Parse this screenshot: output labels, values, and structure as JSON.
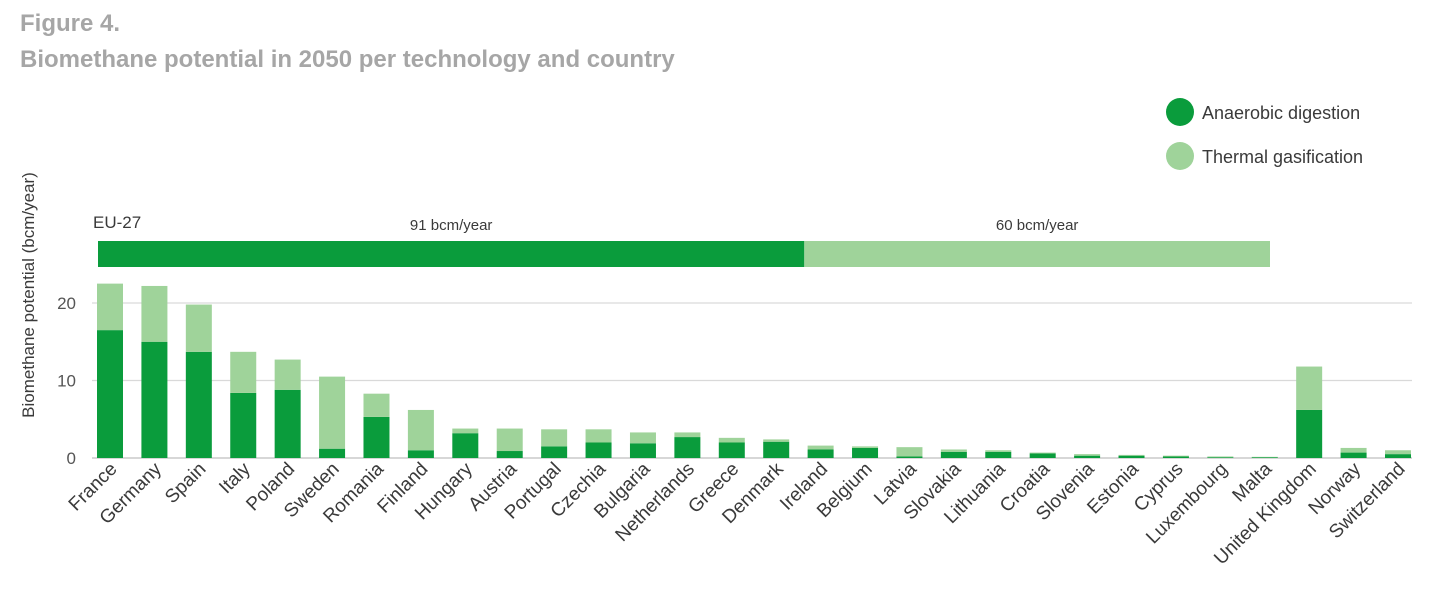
{
  "figure": {
    "number": "Figure 4.",
    "title": "Biomethane potential in 2050 per technology and country"
  },
  "colors": {
    "anaerobic": "#0a9c3c",
    "thermal": "#9fd39a",
    "grid": "#d9d9d9",
    "axis": "#bfbfbf"
  },
  "chart_data": {
    "type": "bar",
    "stacked": true,
    "title": "Biomethane potential in 2050 per technology and country",
    "ylabel": "Biomethane potential (bcm/year)",
    "ylim": [
      0,
      23
    ],
    "yticks": [
      0,
      10,
      20
    ],
    "grid": true,
    "legend_position": "top-right",
    "categories": [
      "France",
      "Germany",
      "Spain",
      "Italy",
      "Poland",
      "Sweden",
      "Romania",
      "Finland",
      "Hungary",
      "Austria",
      "Portugal",
      "Czechia",
      "Bulgaria",
      "Netherlands",
      "Greece",
      "Denmark",
      "Ireland",
      "Belgium",
      "Latvia",
      "Slovakia",
      "Lithuania",
      "Croatia",
      "Slovenia",
      "Estonia",
      "Cyprus",
      "Luxembourg",
      "Malta",
      "United Kingdom",
      "Norway",
      "Switzerland"
    ],
    "series": [
      {
        "name": "Anaerobic digestion",
        "values": [
          16.5,
          15.0,
          13.7,
          8.4,
          8.8,
          1.2,
          5.3,
          1.0,
          3.2,
          0.9,
          1.5,
          2.0,
          1.9,
          2.7,
          2.0,
          2.1,
          1.1,
          1.3,
          0.2,
          0.8,
          0.8,
          0.6,
          0.3,
          0.3,
          0.2,
          0.1,
          0.1,
          6.2,
          0.7,
          0.5
        ]
      },
      {
        "name": "Thermal gasification",
        "values": [
          6.0,
          7.2,
          6.1,
          5.3,
          3.9,
          9.3,
          3.0,
          5.2,
          0.6,
          2.9,
          2.2,
          1.7,
          1.4,
          0.6,
          0.6,
          0.3,
          0.5,
          0.2,
          1.2,
          0.3,
          0.2,
          0.1,
          0.2,
          0.1,
          0.1,
          0.1,
          0.05,
          5.6,
          0.6,
          0.5
        ]
      }
    ],
    "eu27": {
      "label": "EU-27",
      "anaerobic_bcm": 91,
      "thermal_bcm": 60,
      "anaerobic_label": "91 bcm/year",
      "thermal_label": "60 bcm/year"
    }
  }
}
